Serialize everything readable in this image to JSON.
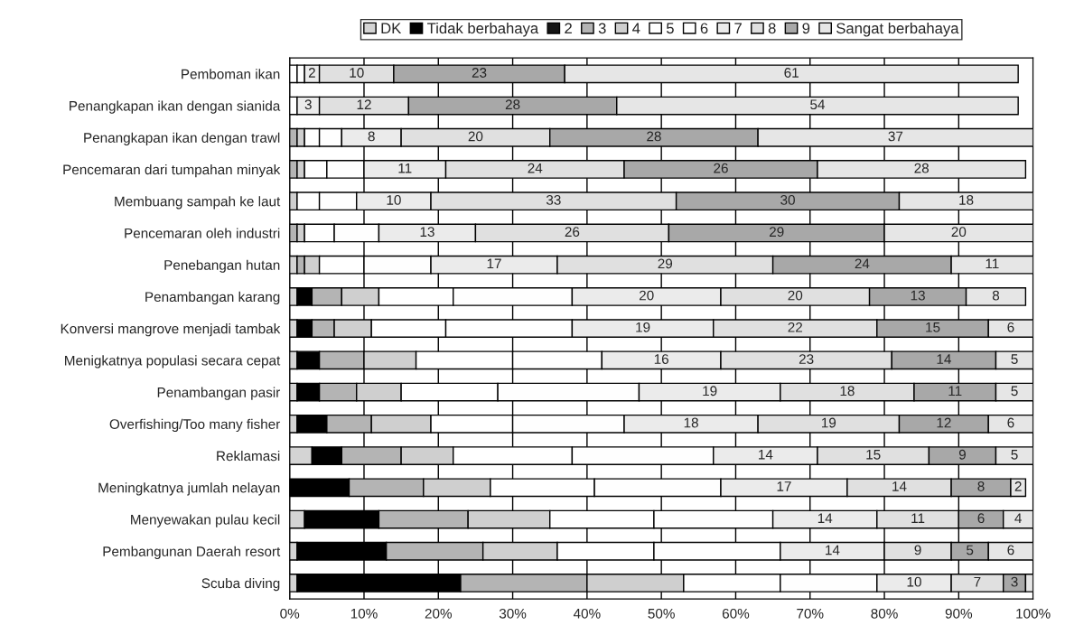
{
  "chart_data": {
    "type": "bar",
    "orientation": "horizontal",
    "stacked": true,
    "categories": [
      "Pemboman ikan",
      "Penangkapan ikan dengan sianida",
      "Penangkapan ikan dengan trawl",
      "Pencemaran dari tumpahan minyak",
      "Membuang sampah ke laut",
      "Pencemaran oleh industri",
      "Penebangan hutan",
      "Penambangan karang",
      "Konversi mangrove menjadi tambak",
      "Menigkatnya populasi secara cepat",
      "Penambangan pasir",
      "Overfishing/Too many fisher",
      "Reklamasi",
      "Meningkatnya jumlah nelayan",
      "Menyewakan pulau kecil",
      "Pembangunan Daerah resort",
      "Scuba diving"
    ],
    "series": [
      {
        "name": "DK",
        "color": "#d4d4d4",
        "values": [
          0,
          0,
          0,
          0,
          0,
          0,
          1,
          1,
          1,
          1,
          1,
          1,
          3,
          0,
          2,
          1,
          1
        ]
      },
      {
        "name": "Tidak berbahaya",
        "color": "#000000",
        "values": [
          0,
          0,
          0,
          0,
          0,
          0,
          0,
          2,
          2,
          3,
          3,
          4,
          4,
          8,
          10,
          12,
          22
        ]
      },
      {
        "name": "2",
        "color": "#141414",
        "values": [
          0,
          0,
          0,
          0,
          0,
          0,
          0,
          0,
          0,
          0,
          0,
          0,
          0,
          0,
          0,
          0,
          0
        ]
      },
      {
        "name": "3",
        "color": "#b4b4b4",
        "values": [
          0,
          0,
          1,
          1,
          0,
          1,
          1,
          4,
          3,
          6,
          5,
          6,
          8,
          10,
          12,
          13,
          17
        ]
      },
      {
        "name": "4",
        "color": "#cfcfcf",
        "values": [
          0,
          0,
          1,
          1,
          1,
          1,
          2,
          5,
          5,
          7,
          6,
          8,
          7,
          9,
          11,
          10,
          13
        ]
      },
      {
        "name": "5",
        "color": "#ffffff",
        "values": [
          1,
          0,
          2,
          3,
          3,
          4,
          6,
          10,
          10,
          13,
          13,
          11,
          16,
          14,
          14,
          13,
          13
        ]
      },
      {
        "name": "6",
        "color": "#fefefe",
        "values": [
          1,
          1,
          3,
          5,
          5,
          6,
          9,
          16,
          17,
          12,
          19,
          15,
          19,
          17,
          16,
          17,
          13
        ]
      },
      {
        "name": "7",
        "color": "#ebebeb",
        "values": [
          2,
          3,
          8,
          11,
          10,
          13,
          17,
          20,
          19,
          16,
          19,
          18,
          14,
          17,
          14,
          14,
          10
        ],
        "value_labels": [
          "2",
          "3",
          "8",
          "11",
          "10",
          "13",
          "17",
          "20",
          "19",
          "16",
          "19",
          "18",
          "14",
          "17",
          "14",
          "14",
          "10"
        ]
      },
      {
        "name": "8",
        "color": "#e0e0e0",
        "values": [
          10,
          12,
          20,
          24,
          33,
          26,
          29,
          20,
          22,
          23,
          18,
          19,
          15,
          14,
          11,
          9,
          7
        ],
        "value_labels": [
          "10",
          "12",
          "20",
          "24",
          "33",
          "26",
          "29",
          "20",
          "22",
          "23",
          "18",
          "19",
          "15",
          "14",
          "11",
          "9",
          "7"
        ]
      },
      {
        "name": "9",
        "color": "#a8a8a8",
        "values": [
          23,
          28,
          28,
          26,
          30,
          29,
          24,
          13,
          15,
          14,
          11,
          12,
          9,
          8,
          6,
          5,
          3
        ],
        "value_labels": [
          "23",
          "28",
          "28",
          "26",
          "30",
          "29",
          "24",
          "13",
          "15",
          "14",
          "11",
          "12",
          "9",
          "8",
          "6",
          "5",
          "3"
        ]
      },
      {
        "name": "Sangat berbahaya",
        "color": "#e6e6e6",
        "values": [
          61,
          54,
          37,
          28,
          18,
          20,
          11,
          8,
          6,
          5,
          5,
          6,
          5,
          2,
          4,
          6,
          1
        ],
        "value_labels": [
          "61",
          "54",
          "37",
          "28",
          "18",
          "20",
          "11",
          "8",
          "6",
          "5",
          "5",
          "6",
          "5",
          "2",
          "4",
          "6",
          null
        ]
      }
    ],
    "xlim": [
      0,
      100
    ],
    "xticks": [
      {
        "value": 0,
        "label": "0%"
      },
      {
        "value": 10,
        "label": "10%"
      },
      {
        "value": 20,
        "label": "20%"
      },
      {
        "value": 30,
        "label": "30%"
      },
      {
        "value": 40,
        "label": "40%"
      },
      {
        "value": 50,
        "label": "50%"
      },
      {
        "value": 60,
        "label": "60%"
      },
      {
        "value": 70,
        "label": "70%"
      },
      {
        "value": 80,
        "label": "80%"
      },
      {
        "value": 90,
        "label": "90%"
      },
      {
        "value": 100,
        "label": "100%"
      }
    ],
    "grid": "x",
    "legend": "top"
  }
}
